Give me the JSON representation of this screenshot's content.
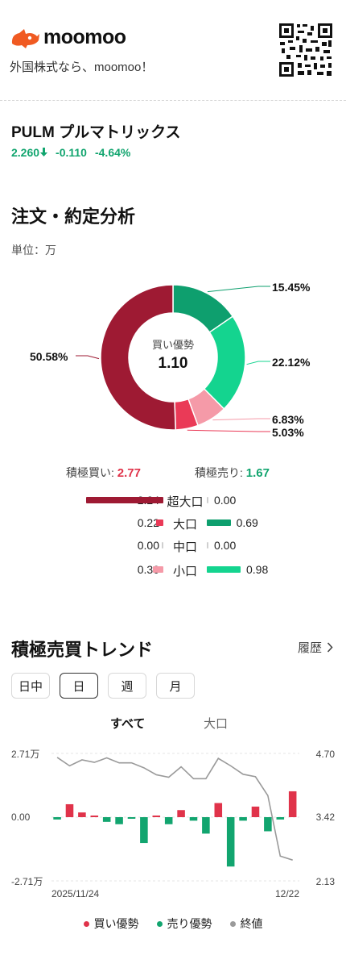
{
  "header": {
    "brand": "moomoo",
    "tagline": "外国株式なら、moomoo！",
    "qr_icon": "qr-code-icon"
  },
  "stock": {
    "name": "PULM  プルマトリックス",
    "price": "2.260",
    "change": "-0.110",
    "change_pct": "-4.64%",
    "up_color": "#e0334a",
    "down_color": "#12a56f"
  },
  "order_analysis": {
    "title": "注文・約定分析",
    "unit": "単位：万",
    "center_label": "買い優勢",
    "center_value": "1.10",
    "slices": [
      {
        "label": "15.45%",
        "value": 15.45,
        "color": "#0e9f6e"
      },
      {
        "label": "22.12%",
        "value": 22.12,
        "color": "#14d48f"
      },
      {
        "label": "6.83%",
        "value": 6.83,
        "color": "#f59aa8"
      },
      {
        "label": "5.03%",
        "value": 5.03,
        "color": "#ea3a57"
      },
      {
        "label": "50.58%",
        "value": 50.58,
        "color": "#9e1a33"
      }
    ],
    "active_buy_label": "積極買い:",
    "active_buy_value": "2.77",
    "active_sell_label": "積極売り:",
    "active_sell_value": "1.67",
    "rows": [
      {
        "label": "超大口",
        "buy": "2.24",
        "sell": "0.00",
        "buy_num": 2.24,
        "sell_num": 0.0,
        "buy_color": "#9e1a33",
        "sell_color": "#0e9f6e"
      },
      {
        "label": "大口",
        "buy": "0.22",
        "sell": "0.69",
        "buy_num": 0.22,
        "sell_num": 0.69,
        "buy_color": "#ea3a57",
        "sell_color": "#0e9f6e"
      },
      {
        "label": "中口",
        "buy": "0.00",
        "sell": "0.00",
        "buy_num": 0.0,
        "sell_num": 0.0,
        "buy_color": "#ea3a57",
        "sell_color": "#0e9f6e"
      },
      {
        "label": "小口",
        "buy": "0.30",
        "sell": "0.98",
        "buy_num": 0.3,
        "sell_num": 0.98,
        "buy_color": "#f59aa8",
        "sell_color": "#14d48f"
      }
    ]
  },
  "trend": {
    "title": "積極売買トレンド",
    "history_label": "履歴",
    "tabs": [
      "日中",
      "日",
      "週",
      "月"
    ],
    "selected_tab": 1,
    "subtabs": [
      "すべて",
      "大口"
    ],
    "selected_subtab": 0,
    "legend": [
      {
        "label": "買い優勢",
        "color": "#e0334a"
      },
      {
        "label": "売り優勢",
        "color": "#12a56f"
      },
      {
        "label": "終値",
        "color": "#9a9a9a"
      }
    ]
  },
  "chart_data": {
    "type": "bar",
    "left_axis_ticks": [
      "2.71万",
      "0.00",
      "-2.71万"
    ],
    "right_axis_ticks": [
      "4.70",
      "3.42",
      "2.13"
    ],
    "ylim_left": [
      -2.71,
      2.71
    ],
    "ylim_right": [
      2.13,
      4.7
    ],
    "x_start_label": "2025/11/24",
    "x_end_label": "12/22",
    "bar_series": {
      "name": "買い/売り優勢",
      "values": [
        -0.1,
        0.55,
        0.2,
        0,
        -0.2,
        -0.3,
        -0.05,
        -1.1,
        0.03,
        -0.3,
        0.3,
        -0.15,
        -0.7,
        0.6,
        -2.1,
        -0.15,
        0.45,
        -0.6,
        -0.1,
        1.1
      ]
    },
    "line_series": {
      "name": "終値",
      "values": [
        4.62,
        4.45,
        4.57,
        4.52,
        4.61,
        4.51,
        4.51,
        4.41,
        4.27,
        4.22,
        4.43,
        4.19,
        4.19,
        4.6,
        4.45,
        4.28,
        4.23,
        3.85,
        2.63,
        2.55
      ]
    }
  }
}
